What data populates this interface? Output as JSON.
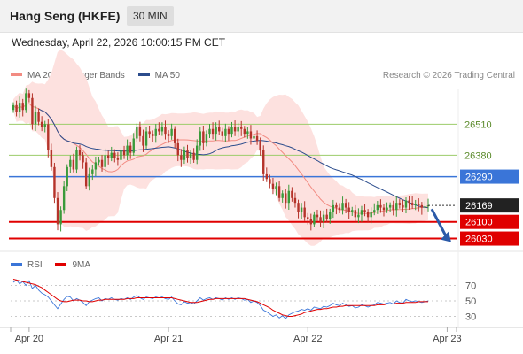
{
  "header": {
    "title": "Hang Seng (HKFE)",
    "timeframe": "30 MIN"
  },
  "datetime": "Wednesday, April 22, 2026 10:00:15 PM CET",
  "copyright": "Research © 2026 Trading Central",
  "chart_data": [
    {
      "type": "line",
      "title": "",
      "legend": [
        {
          "name": "MA 20 + Bollinger Bands",
          "color": "#f28b82"
        },
        {
          "name": "MA 50",
          "color": "#2b4c8c"
        }
      ],
      "ylim": [
        25980,
        26660
      ],
      "x_ticks": [
        "Apr 20",
        "Apr 21",
        "Apr 22",
        "Apr 23"
      ],
      "x_tick_index": [
        5,
        49,
        93,
        137
      ],
      "current_price": {
        "label": "26169",
        "value": 26169
      },
      "levels": [
        {
          "label": "26510",
          "value": 26510,
          "color": "#9ccc6a",
          "kind": "resistance"
        },
        {
          "label": "26380",
          "value": 26380,
          "color": "#9ccc6a",
          "kind": "resistance"
        },
        {
          "label": "26290",
          "value": 26290,
          "color": "#3a75d8",
          "kind": "pivot"
        },
        {
          "label": "26100",
          "value": 26100,
          "color": "#e00000",
          "kind": "support"
        },
        {
          "label": "26030",
          "value": 26030,
          "color": "#e00000",
          "kind": "support"
        }
      ],
      "candles_close": [
        26590,
        26560,
        26600,
        26570,
        26640,
        26620,
        26510,
        26560,
        26520,
        26500,
        26510,
        26400,
        26330,
        26200,
        26090,
        26150,
        26250,
        26330,
        26360,
        26320,
        26400,
        26380,
        26350,
        26250,
        26300,
        26320,
        26350,
        26360,
        26330,
        26380,
        26370,
        26390,
        26370,
        26360,
        26400,
        26380,
        26420,
        26390,
        26450,
        26500,
        26460,
        26420,
        26480,
        26470,
        26460,
        26490,
        26480,
        26500,
        26470,
        26460,
        26490,
        26430,
        26380,
        26360,
        26400,
        26370,
        26390,
        26360,
        26420,
        26480,
        26430,
        26470,
        26490,
        26470,
        26500,
        26480,
        26460,
        26490,
        26470,
        26500,
        26480,
        26500,
        26490,
        26470,
        26480,
        26450,
        26460,
        26440,
        26400,
        26300,
        26280,
        26260,
        26240,
        26250,
        26200,
        26220,
        26180,
        26230,
        26200,
        26180,
        26140,
        26160,
        26120,
        26110,
        26090,
        26130,
        26120,
        26100,
        26130,
        26110,
        26140,
        26170,
        26160,
        26150,
        26180,
        26160,
        26140,
        26150,
        26120,
        26130,
        26150,
        26140,
        26120,
        26140,
        26150,
        26170,
        26160,
        26150,
        26160,
        26170,
        26150,
        26180,
        26170,
        26160,
        26190,
        26180,
        26170,
        26175,
        26170,
        26160,
        26165,
        26169
      ],
      "rsi": {
        "name": "RSI",
        "color": "#3a75d8",
        "ma_name": "9MA",
        "ma_color": "#e00000",
        "ticks": [
          30,
          50,
          70
        ],
        "ylim": [
          18,
          82
        ],
        "values": [
          74,
          77,
          72,
          75,
          70,
          76,
          66,
          70,
          64,
          60,
          58,
          55,
          50,
          45,
          40,
          46,
          52,
          56,
          55,
          50,
          53,
          51,
          48,
          44,
          49,
          51,
          53,
          54,
          50,
          53,
          52,
          54,
          52,
          51,
          53,
          52,
          54,
          52,
          55,
          57,
          54,
          52,
          55,
          54,
          53,
          55,
          54,
          55,
          53,
          52,
          55,
          50,
          46,
          45,
          49,
          47,
          48,
          46,
          50,
          54,
          51,
          53,
          54,
          52,
          54,
          53,
          51,
          54,
          52,
          54,
          52,
          54,
          53,
          51,
          52,
          48,
          50,
          48,
          44,
          38,
          36,
          33,
          30,
          32,
          28,
          31,
          27,
          32,
          34,
          36,
          37,
          39,
          38,
          40,
          38,
          42,
          41,
          40,
          43,
          42,
          44,
          47,
          45,
          44,
          47,
          45,
          43,
          44,
          41,
          42,
          45,
          44,
          42,
          44,
          45,
          48,
          47,
          46,
          47,
          48,
          46,
          50,
          48,
          47,
          52,
          50,
          49,
          50,
          49,
          48,
          49,
          50
        ],
        "ma_values": [
          78,
          77,
          76,
          75,
          74,
          73,
          72,
          71,
          69,
          67,
          64,
          61,
          58,
          55,
          52,
          50,
          49,
          49,
          50,
          51,
          51,
          51,
          50,
          50,
          49,
          49,
          50,
          51,
          51,
          52,
          52,
          52,
          52,
          52,
          52,
          52,
          53,
          53,
          53,
          54,
          54,
          54,
          54,
          54,
          54,
          54,
          54,
          54,
          54,
          54,
          54,
          53,
          52,
          51,
          50,
          49,
          48,
          48,
          48,
          49,
          50,
          51,
          52,
          52,
          53,
          53,
          53,
          53,
          53,
          53,
          53,
          53,
          53,
          53,
          52,
          51,
          50,
          49,
          47,
          45,
          43,
          41,
          38,
          36,
          34,
          32,
          31,
          30,
          30,
          31,
          32,
          33,
          35,
          36,
          37,
          38,
          39,
          39,
          40,
          40,
          41,
          42,
          42,
          43,
          43,
          44,
          44,
          44,
          44,
          44,
          44,
          44,
          44,
          44,
          44,
          45,
          45,
          45,
          46,
          46,
          46,
          47,
          47,
          47,
          48,
          48,
          48,
          48,
          49,
          49,
          49,
          49
        ]
      }
    }
  ]
}
